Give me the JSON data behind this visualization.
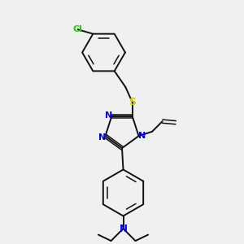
{
  "bg_color": "#f0f0f0",
  "atom_colors": {
    "Cl": "#22cc00",
    "S": "#cccc00",
    "N": "#0000ee"
  },
  "bond_color": "#111111",
  "figsize": [
    3.0,
    3.0
  ],
  "dpi": 100,
  "xlim": [
    0,
    10
  ],
  "ylim": [
    0,
    10
  ]
}
